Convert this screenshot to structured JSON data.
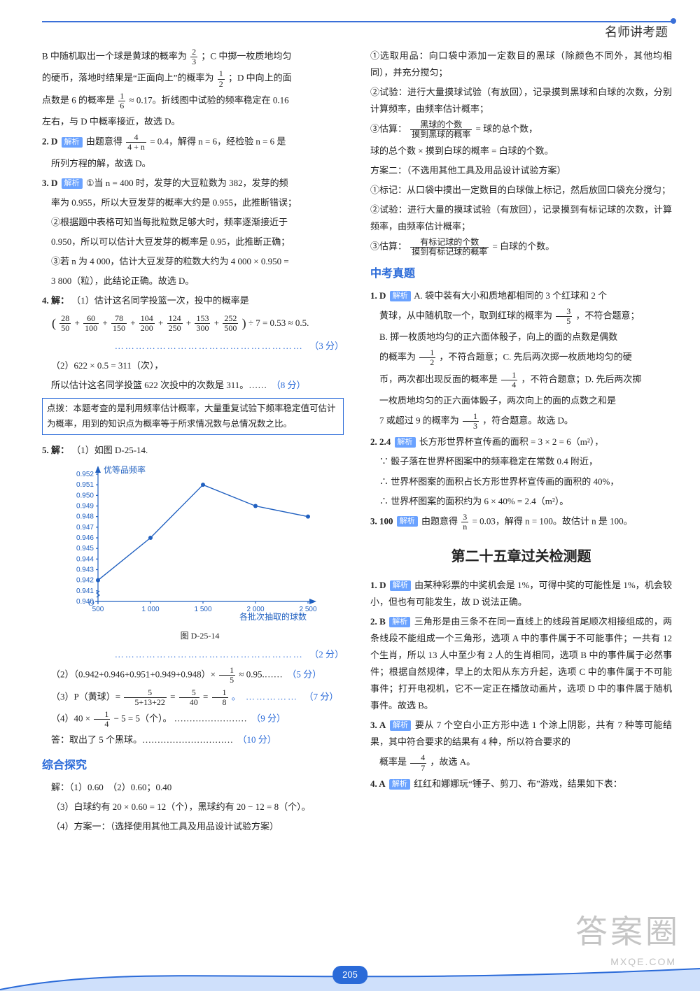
{
  "header": {
    "title": "名师讲考题"
  },
  "page_number": "205",
  "watermark": {
    "main": "答案圈",
    "sub": "MXQE.COM"
  },
  "tags": {
    "analysis": "解析"
  },
  "left": {
    "intro_b": "B 中随机取出一个球是黄球的概率为",
    "intro_b_frac": {
      "n": "2",
      "d": "3"
    },
    "intro_b_tail": "；C 中掷一枚质地均匀",
    "intro_c": "的硬币，落地时结果是“正面向上”的概率为",
    "intro_c_frac": {
      "n": "1",
      "d": "2"
    },
    "intro_c_tail": "；D 中向上的面",
    "intro_d": "点数是 6 的概率是",
    "intro_d_frac": {
      "n": "1",
      "d": "6"
    },
    "intro_d_tail": "≈ 0.17。折线图中试验的频率稳定在 0.16",
    "intro_e": "左右，与 D 中概率接近，故选 D。",
    "q2_num": "2. D",
    "q2_a": "由题意得",
    "q2_frac": {
      "n": "4",
      "d": "4 + n"
    },
    "q2_b": " = 0.4，解得 n = 6，经检验 n = 6 是",
    "q2_c": "所列方程的解，故选 D。",
    "q3_num": "3. D",
    "q3_a": "①当 n = 400 时，发芽的大豆粒数为 382，发芽的频",
    "q3_b": "率为 0.955，所以大豆发芽的概率大约是 0.955，此推断错误；",
    "q3_c": "②根据题中表格可知当每批粒数足够大时，频率逐渐接近于",
    "q3_d": "0.950，所以可以估计大豆发芽的概率是 0.95，此推断正确；",
    "q3_e": "③若 n 为 4 000，估计大豆发芽的粒数大约为 4 000 × 0.950 =",
    "q3_f": "3 800（粒），此结论正确。故选 D。",
    "q4_num": "4. 解：",
    "q4_a": "（1）估计这名同学投篮一次，投中的概率是",
    "q4_paren_l": "(",
    "q4_terms": [
      {
        "n": "28",
        "d": "50"
      },
      {
        "n": "60",
        "d": "100"
      },
      {
        "n": "78",
        "d": "150"
      },
      {
        "n": "104",
        "d": "200"
      },
      {
        "n": "124",
        "d": "250"
      },
      {
        "n": "153",
        "d": "300"
      },
      {
        "n": "252",
        "d": "500"
      }
    ],
    "q4_paren_r": ")",
    "q4_tail": " ÷ 7 = 0.53 ≈ 0.5.",
    "q4_score1_dots": "………………………………………………　",
    "q4_score1": "（3 分）",
    "q4_part2a": "（2）622 × 0.5 = 311（次），",
    "q4_part2b": "所以估计这名同学投篮 622 次投中的次数是 311。……　",
    "q4_score2": "（8 分）",
    "tip": "点拨：本题考查的是利用频率估计概率，大量重复试验下频率稳定值可估计为概率，用到的知识点为概率等于所求情况数与总情况数之比。",
    "q5_num": "5. 解：",
    "q5_a": "（1）如图 D-25-14.",
    "chart": {
      "y_label": "优等品频率",
      "x_label": "各批次抽取的球数",
      "y_ticks": [
        "0.952",
        "0.951",
        "0.950",
        "0.949",
        "0.948",
        "0.947",
        "0.946",
        "0.945",
        "0.944",
        "0.943",
        "0.942",
        "0.941",
        "0.940"
      ],
      "x_ticks": [
        "500",
        "1 000",
        "1 500",
        "2 000",
        "2 500"
      ],
      "points_vals": [
        {
          "x": 500,
          "y": 0.942
        },
        {
          "x": 1000,
          "y": 0.946
        },
        {
          "x": 1500,
          "y": 0.951
        },
        {
          "x": 2000,
          "y": 0.949
        },
        {
          "x": 2500,
          "y": 0.948
        }
      ],
      "caption": "图 D-25-14",
      "color": "#2060c0"
    },
    "q5_score1_dots": "………………………………………………　",
    "q5_score1": "（2 分）",
    "q5_p2": "（2）（0.942+0.946+0.951+0.949+0.948）×",
    "q5_p2_frac": {
      "n": "1",
      "d": "5"
    },
    "q5_p2_tail": " ≈ 0.95.……　",
    "q5_score2": "（5 分）",
    "q5_p3a": "（3）P（黄球）=",
    "q5_p3f1": {
      "n": "5",
      "d": "5+13+22"
    },
    "q5_p3eq": "=",
    "q5_p3f2": {
      "n": "5",
      "d": "40"
    },
    "q5_p3f3": {
      "n": "1",
      "d": "8"
    },
    "q5_p3dots": "。 ……………　",
    "q5_score3": "（7 分）",
    "q5_p4a": "（4）40 ×",
    "q5_p4_frac": {
      "n": "1",
      "d": "4"
    },
    "q5_p4b": " − 5 = 5（个）。 ……………………　",
    "q5_score4": "（9 分）",
    "q5_p5": "答：取出了 5 个黑球。…………………………　",
    "q5_score5": "（10 分）",
    "sec_explore": "综合探究",
    "exp1": "解：（1）0.60　（2）0.60；0.40",
    "exp2": "（3）白球约有 20 × 0.60 = 12（个），黑球约有 20 − 12 = 8（个）。",
    "exp3": "（4）方案一：（选择使用其他工具及用品设计试验方案）"
  },
  "right": {
    "p1": "①选取用品：向口袋中添加一定数目的黑球（除颜色不同外，其他均相同），并充分搅匀；",
    "p2": "②试验：进行大量摸球试验（有放回），记录摸到黑球和白球的次数，分别计算频率，由频率估计概率；",
    "p3a": "③估算：",
    "p3_frac": {
      "n": "黑球的个数",
      "d": "摸到黑球的概率"
    },
    "p3b": " = 球的总个数，",
    "p4": "球的总个数 × 摸到白球的概率 = 白球的个数。",
    "p5": "方案二：（不选用其他工具及用品设计试验方案）",
    "p6": "①标记：从口袋中摸出一定数目的白球做上标记，然后放回口袋充分搅匀；",
    "p7": "②试验：进行大量的摸球试验（有放回），记录摸到有标记球的次数，计算频率，由频率估计概率；",
    "p8a": "③估算：",
    "p8_frac": {
      "n": "有标记球的个数",
      "d": "摸到有标记球的概率"
    },
    "p8b": " = 白球的个数。",
    "sec_zk": "中考真题",
    "zk1_num": "1. D",
    "zk1_a": "A. 袋中装有大小和质地都相同的 3 个红球和 2 个",
    "zk1_b": "黄球，从中随机取一个，取到红球的概率为",
    "zk1_frac": {
      "n": "3",
      "d": "5"
    },
    "zk1_c": "，不符合题意；",
    "zk1_d": "B. 掷一枚质地均匀的正六面体骰子，向上的面的点数是偶数",
    "zk1_e": "的概率为",
    "zk1_frac2": {
      "n": "1",
      "d": "2"
    },
    "zk1_f": "，不符合题意；C. 先后两次掷一枚质地均匀的硬",
    "zk1_g": "币，两次都出现反面的概率是",
    "zk1_frac3": {
      "n": "1",
      "d": "4"
    },
    "zk1_h": "，不符合题意；D. 先后两次掷",
    "zk1_i": "一枚质地均匀的正六面体骰子，两次向上的面的点数之和是",
    "zk1_j": "7 或超过 9 的概率为",
    "zk1_frac4": {
      "n": "1",
      "d": "3"
    },
    "zk1_k": "，符合题意。故选 D。",
    "zk2_num": "2. 2.4",
    "zk2_a": "长方形世界杯宣传画的面积 = 3 × 2 = 6（m²），",
    "zk2_b": "∵ 骰子落在世界杯图案中的频率稳定在常数 0.4 附近，",
    "zk2_c": "∴ 世界杯图案的面积占长方形世界杯宣传画的面积的 40%，",
    "zk2_d": "∴ 世界杯图案的面积约为 6 × 40% = 2.4（m²）。",
    "zk3_num": "3. 100",
    "zk3_a": "由题意得",
    "zk3_frac": {
      "n": "3",
      "d": "n"
    },
    "zk3_b": " = 0.03，解得 n = 100。故估计 n 是 100。",
    "chapter": "第二十五章过关检测题",
    "c1_num": "1. D",
    "c1": "由某种彩票的中奖机会是 1%，可得中奖的可能性是 1%，机会较小，但也有可能发生，故 D 说法正确。",
    "c2_num": "2. B",
    "c2": "三角形是由三条不在同一直线上的线段首尾顺次相接组成的，两条线段不能组成一个三角形，选项 A 中的事件属于不可能事件；一共有 12 个生肖，所以 13 人中至少有 2 人的生肖相同，选项 B 中的事件属于必然事件；根据自然规律，早上的太阳从东方升起，选项 C 中的事件属于不可能事件；打开电视机，它不一定正在播放动画片，选项 D 中的事件属于随机事件。故选 B。",
    "c3_num": "3. A",
    "c3a": "要从 7 个空白小正方形中选 1 个涂上阴影，共有 7 种等可能结果，其中符合要求的结果有 4 种，所以符合要求的",
    "c3b": "概率是",
    "c3_frac": {
      "n": "4",
      "d": "7"
    },
    "c3c": "，故选 A。",
    "c4_num": "4. A",
    "c4": "红红和娜娜玩“锤子、剪刀、布”游戏，结果如下表："
  }
}
